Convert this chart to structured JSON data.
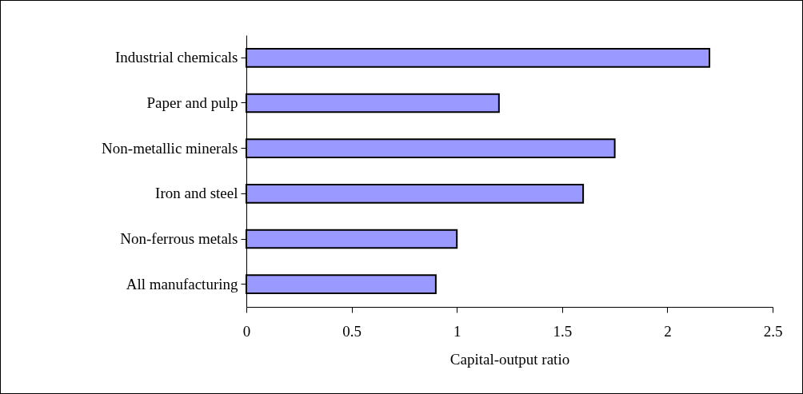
{
  "chart_data": {
    "type": "bar",
    "orientation": "horizontal",
    "xlabel": "Capital-output ratio",
    "categories": [
      "Industrial chemicals",
      "Paper and pulp",
      "Non-metallic minerals",
      "Iron and steel",
      "Non-ferrous metals",
      "All manufacturing"
    ],
    "values": [
      2.2,
      1.2,
      1.75,
      1.6,
      1.0,
      0.9
    ],
    "color": "#9999ff",
    "xlim": [
      0,
      2.5
    ],
    "xticks": [
      0,
      0.5,
      1,
      1.5,
      2,
      2.5
    ],
    "grid": false,
    "legend": false
  }
}
